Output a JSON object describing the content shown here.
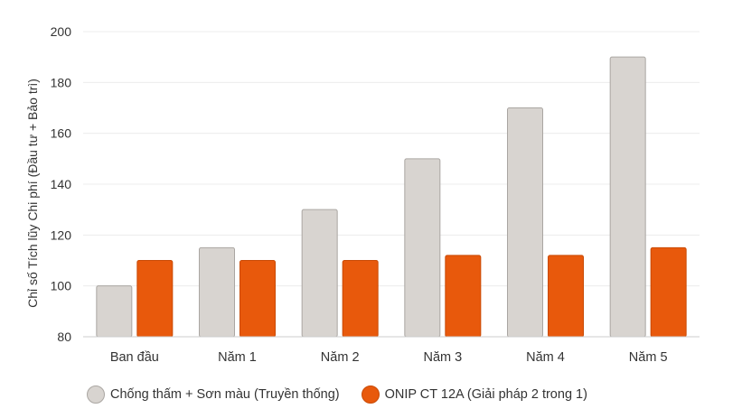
{
  "colors": {
    "traditional_fill": "#d8d4d0",
    "traditional_stroke": "#aaa6a2",
    "onip_fill": "#e8590c",
    "onip_stroke": "#c94a05",
    "grid": "#ececec",
    "axis": "#cccccc",
    "text": "#333333"
  },
  "chart_data": {
    "type": "bar",
    "title": "",
    "xlabel": "",
    "ylabel": "Chỉ số Tích lũy Chi phí (Đầu tư + Bảo trì)",
    "categories": [
      "Ban đầu",
      "Năm 1",
      "Năm 2",
      "Năm 3",
      "Năm 4",
      "Năm 5"
    ],
    "series": [
      {
        "name": "Chống thấm + Sơn màu (Truyền thống)",
        "values": [
          100,
          115,
          130,
          150,
          170,
          190
        ]
      },
      {
        "name": "ONIP CT 12A (Giải pháp 2 trong 1)",
        "values": [
          110,
          110,
          110,
          112,
          112,
          115
        ]
      }
    ],
    "ylim": [
      80,
      200
    ],
    "yticks": [
      "80",
      "100",
      "120",
      "140",
      "160",
      "180",
      "200"
    ],
    "grid": true,
    "legend_position": "bottom-left"
  }
}
